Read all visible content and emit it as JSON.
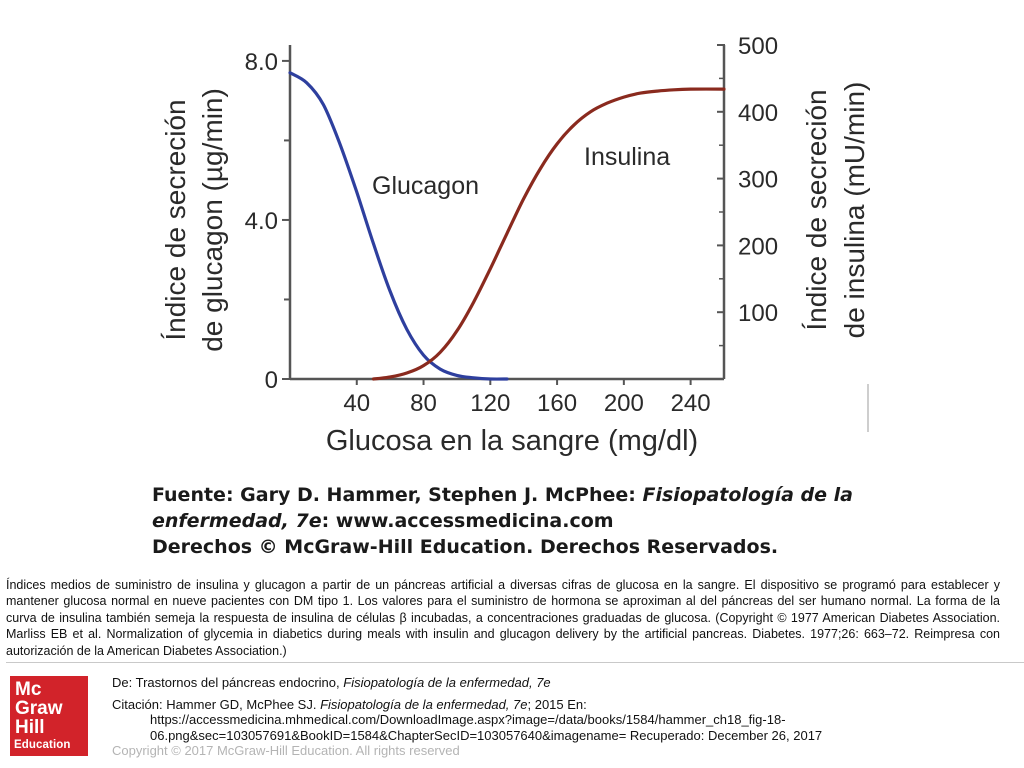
{
  "chart_data": {
    "type": "line",
    "xlabel": "Glucosa en la sangre (mg/dl)",
    "ylabel_left_line1": "Índice de secreción",
    "ylabel_left_line2": "de glucagon (µg/min)",
    "ylabel_right_line1": "Índice de secreción",
    "ylabel_right_line2": "de insulina (mU/min)",
    "x_ticks": [
      40,
      80,
      120,
      160,
      200,
      240
    ],
    "xlim": [
      0,
      260
    ],
    "y_left_ticks": [
      {
        "value": 0,
        "label": "0"
      },
      {
        "value": 4,
        "label": "4.0"
      },
      {
        "value": 8,
        "label": "8.0"
      }
    ],
    "y_left_lim": [
      0,
      8.4
    ],
    "y_right_ticks": [
      100,
      200,
      300,
      400,
      500
    ],
    "y_right_lim": [
      0,
      500
    ],
    "series": [
      {
        "name": "Glucagon",
        "axis": "left",
        "color": "#2e3f9e",
        "points": [
          [
            0,
            7.7
          ],
          [
            10,
            7.45
          ],
          [
            20,
            6.9
          ],
          [
            30,
            5.9
          ],
          [
            40,
            4.7
          ],
          [
            50,
            3.4
          ],
          [
            60,
            2.2
          ],
          [
            70,
            1.25
          ],
          [
            80,
            0.6
          ],
          [
            90,
            0.25
          ],
          [
            100,
            0.09
          ],
          [
            110,
            0.03
          ],
          [
            120,
            0.0
          ],
          [
            130,
            0.0
          ]
        ]
      },
      {
        "name": "Insulina",
        "axis": "right",
        "color": "#8a2a1e",
        "points": [
          [
            50,
            0
          ],
          [
            60,
            3
          ],
          [
            70,
            9
          ],
          [
            80,
            20
          ],
          [
            90,
            40
          ],
          [
            100,
            72
          ],
          [
            110,
            115
          ],
          [
            120,
            165
          ],
          [
            130,
            218
          ],
          [
            140,
            270
          ],
          [
            150,
            315
          ],
          [
            160,
            352
          ],
          [
            170,
            380
          ],
          [
            180,
            400
          ],
          [
            190,
            413
          ],
          [
            200,
            422
          ],
          [
            210,
            428
          ],
          [
            220,
            431
          ],
          [
            230,
            433
          ],
          [
            240,
            434
          ],
          [
            260,
            434
          ]
        ]
      }
    ]
  },
  "source": {
    "line1_prefix": "Fuente: Gary D. Hammer, Stephen J. McPhee: ",
    "line1_italic": "Fisiopatología de la",
    "line2_italic": "enfermedad, 7e",
    "line2_rest": ": www.accessmedicina.com",
    "line3": "Derechos © McGraw-Hill Education. Derechos Reservados."
  },
  "caption": "Índices medios de suministro de insulina y glucagon a partir de un páncreas artificial a diversas cifras de glucosa en la sangre. El dispositivo se programó para establecer y mantener glucosa normal en nueve pacientes con DM tipo 1. Los valores para el suministro de hormona se aproximan al del páncreas del ser humano normal. La forma de la curva de insulina también semeja la respuesta de insulina de células β incubadas, a concentraciones graduadas de glucosa. (Copyright © 1977 American Diabetes Association. Marliss EB et al. Normalization of glycemia in diabetics during meals with insulin and glucagon delivery by the artificial pancreas. Diabetes. 1977;26: 663–72. Reimpresa con autorización de la American Diabetes Association.)",
  "logo": {
    "line1": "Mc",
    "line2": "Graw",
    "line3": "Hill",
    "line4": "Education"
  },
  "footer": {
    "de_prefix": "De: Trastornos del páncreas endocrino, ",
    "de_book": "Fisiopatología de la enfermedad, 7e",
    "citation_prefix": "Citación: Hammer GD, McPhee SJ. ",
    "citation_book": "Fisiopatología de la enfermedad, 7e",
    "citation_suffix": "; 2015 En:",
    "url_line1": "https://accessmedicina.mhmedical.com/DownloadImage.aspx?image=/data/books/1584/hammer_ch18_fig-18-",
    "url_line2": "06.png&sec=103057691&BookID=1584&ChapterSecID=103057640&imagename= Recuperado: December 26, 2017",
    "copyright": "Copyright © 2017 McGraw-Hill Education. All rights reserved"
  }
}
